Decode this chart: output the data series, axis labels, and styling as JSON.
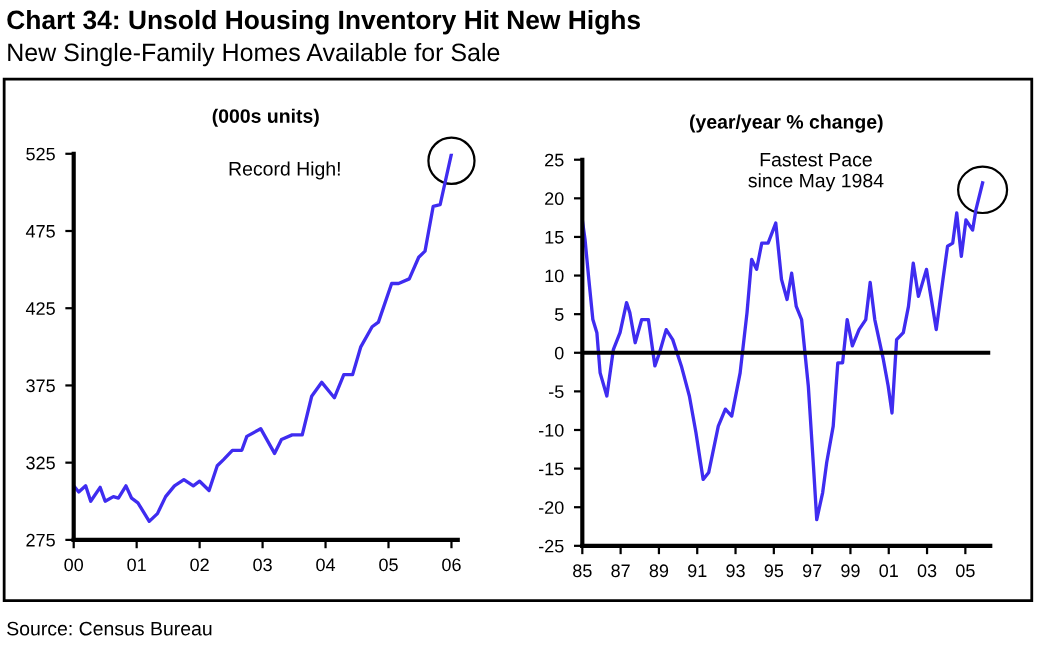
{
  "chart_data": [
    {
      "type": "line",
      "title": "Chart 34: Unsold Housing Inventory Hit New Highs",
      "subtitle": "New Single-Family Homes Available for Sale",
      "ylabel": "(000s units)",
      "annotations": [
        "Record High!",
        "Source: Census Bureau"
      ],
      "series": [
        {
          "color": "#3f2cf0",
          "x": [
            2000,
            2000.08,
            2000.19,
            2000.27,
            2000.42,
            2000.5,
            2000.63,
            2000.71,
            2000.83,
            2000.92,
            2001.02,
            2001.2,
            2001.33,
            2001.46,
            2001.6,
            2001.75,
            2001.9,
            2002.0,
            2002.15,
            2002.28,
            2002.38,
            2002.52,
            2002.67,
            2002.75,
            2002.97,
            2003.19,
            2003.3,
            2003.47,
            2003.63,
            2003.78,
            2003.94,
            2004.14,
            2004.29,
            2004.43,
            2004.56,
            2004.74,
            2004.84,
            2005.05,
            2005.16,
            2005.33,
            2005.48,
            2005.58,
            2005.71,
            2005.82,
            2006.0
          ],
          "values": [
            310,
            306,
            310,
            300,
            309,
            300,
            303,
            302,
            310,
            302,
            299,
            287,
            292,
            303,
            310,
            314,
            310,
            313,
            307,
            323,
            327,
            333,
            333,
            342,
            347,
            331,
            340,
            343,
            343,
            368,
            377,
            367,
            382,
            382,
            400,
            413,
            416,
            441,
            441,
            444,
            458,
            462,
            491,
            492,
            525
          ]
        }
      ],
      "xlim": [
        2000,
        2006.1
      ],
      "xticks": [
        {
          "value": 2000,
          "label": "00"
        },
        {
          "value": 2001,
          "label": "01"
        },
        {
          "value": 2002,
          "label": "02"
        },
        {
          "value": 2003,
          "label": "03"
        },
        {
          "value": 2004,
          "label": "04"
        },
        {
          "value": 2005,
          "label": "05"
        },
        {
          "value": 2006,
          "label": "06"
        }
      ],
      "ylim": [
        275,
        525
      ],
      "yticks": [
        275,
        325,
        375,
        425,
        475,
        525
      ],
      "grid": false,
      "legend": false
    },
    {
      "type": "line",
      "ylabel": "(year/year % change)",
      "annotations": [
        "Fastest Pace\nsince May 1984"
      ],
      "series": [
        {
          "color": "#3f2cf0",
          "x": [
            1985,
            1985.14,
            1985.34,
            1985.55,
            1985.76,
            1985.93,
            1986.28,
            1986.62,
            1986.97,
            1987.31,
            1987.48,
            1987.76,
            1988.1,
            1988.45,
            1988.79,
            1989.03,
            1989.38,
            1989.72,
            1990.17,
            1990.59,
            1990.93,
            1991.31,
            1991.6,
            1992.1,
            1992.47,
            1992.8,
            1993.24,
            1993.6,
            1993.84,
            1994.1,
            1994.37,
            1994.7,
            1995.1,
            1995.4,
            1995.69,
            1995.93,
            1996.17,
            1996.45,
            1996.8,
            1997.07,
            1997.24,
            1997.55,
            1997.76,
            1998.1,
            1998.34,
            1998.59,
            1998.83,
            1999.1,
            1999.45,
            1999.8,
            2000.03,
            2000.27,
            2000.72,
            2000.97,
            2001.17,
            2001.41,
            2001.76,
            2002.03,
            2002.28,
            2002.55,
            2002.97,
            2003.48,
            2003.83,
            2004.07,
            2004.34,
            2004.55,
            2004.79,
            2005.03,
            2005.38,
            2005.55,
            2005.9
          ],
          "values": [
            17.2,
            14.7,
            9.5,
            4.3,
            2.6,
            -2.6,
            -5.6,
            0.4,
            2.6,
            6.5,
            5.2,
            1.3,
            4.3,
            4.3,
            -1.7,
            0,
            3.0,
            1.7,
            -1.7,
            -5.6,
            -10.3,
            -16.4,
            -15.5,
            -9.5,
            -7.3,
            -8.2,
            -2.6,
            5.2,
            12.1,
            10.8,
            14.2,
            14.2,
            16.8,
            9.5,
            6.9,
            10.3,
            6.0,
            4.3,
            -4.3,
            -14.7,
            -21.6,
            -18.1,
            -14.2,
            -9.5,
            -1.3,
            -1.3,
            4.3,
            0.9,
            3.0,
            4.3,
            9.1,
            4.3,
            -0.9,
            -4.3,
            -7.8,
            1.7,
            2.6,
            6.0,
            11.6,
            7.3,
            10.8,
            3.0,
            9.5,
            13.8,
            14.2,
            18.1,
            12.5,
            17.2,
            15.9,
            18.5,
            22
          ]
        }
      ],
      "xlim": [
        1985,
        2006.3
      ],
      "xticks": [
        {
          "value": 1985,
          "label": "85"
        },
        {
          "value": 1987,
          "label": "87"
        },
        {
          "value": 1989,
          "label": "89"
        },
        {
          "value": 1991,
          "label": "91"
        },
        {
          "value": 1993,
          "label": "93"
        },
        {
          "value": 1995,
          "label": "95"
        },
        {
          "value": 1997,
          "label": "97"
        },
        {
          "value": 1999,
          "label": "99"
        },
        {
          "value": 2001,
          "label": "01"
        },
        {
          "value": 2003,
          "label": "03"
        },
        {
          "value": 2005,
          "label": "05"
        }
      ],
      "ylim": [
        -25,
        25
      ],
      "yticks": [
        -25,
        -20,
        -15,
        -10,
        -5,
        0,
        5,
        10,
        15,
        20,
        25
      ],
      "ref_lines": [
        {
          "axis": "y",
          "value": 0,
          "color": "#000000"
        }
      ],
      "grid": false,
      "legend": false
    }
  ]
}
